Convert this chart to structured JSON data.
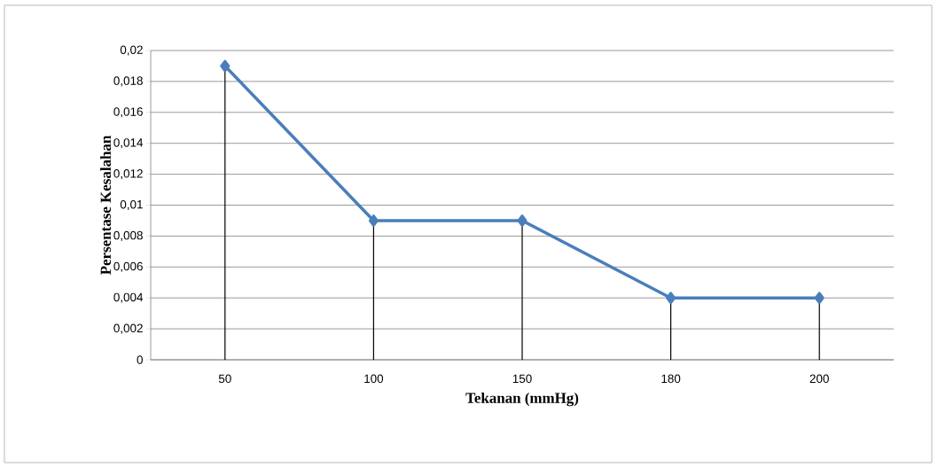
{
  "chart_data": {
    "type": "line",
    "xlabel": "Tekanan (mmHg)",
    "ylabel": "Persentase Kesalahan",
    "categories": [
      "50",
      "100",
      "150",
      "180",
      "200"
    ],
    "series": [
      {
        "color": "#4a7ebb",
        "values": [
          0.019,
          0.009,
          0.009,
          0.004,
          0.004
        ],
        "errors": [
          [
            0.019,
            0
          ],
          [
            0.009,
            0
          ],
          [
            0.009,
            0
          ],
          [
            0.004,
            0
          ],
          [
            0.004,
            0
          ]
        ]
      }
    ],
    "ylim": [
      0,
      0.02
    ],
    "yticks": [
      {
        "value": 0,
        "label": "0"
      },
      {
        "value": 0.002,
        "label": "0,002"
      },
      {
        "value": 0.004,
        "label": "0,004"
      },
      {
        "value": 0.006,
        "label": "0,006"
      },
      {
        "value": 0.008,
        "label": "0,008"
      },
      {
        "value": 0.01,
        "label": "0,01"
      },
      {
        "value": 0.012,
        "label": "0,012"
      },
      {
        "value": 0.014,
        "label": "0,014"
      },
      {
        "value": 0.016,
        "label": "0,016"
      },
      {
        "value": 0.018,
        "label": "0,018"
      },
      {
        "value": 0.02,
        "label": "0,02"
      }
    ],
    "grid": "y",
    "marker": "diamond",
    "line_style": "solid"
  }
}
